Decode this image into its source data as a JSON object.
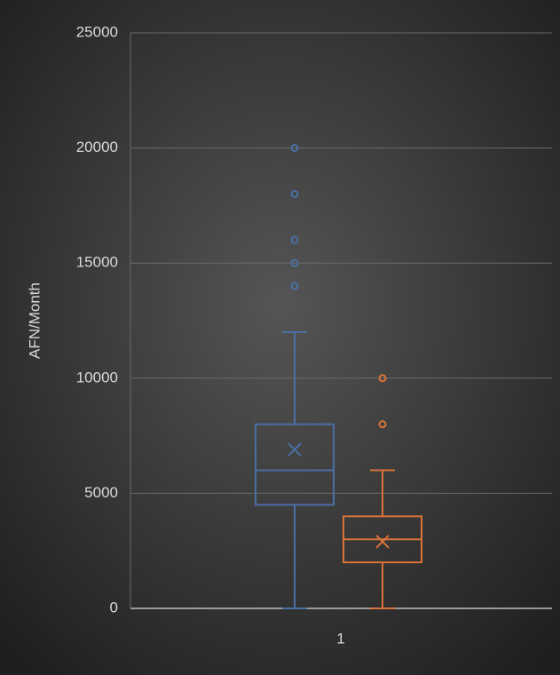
{
  "chart_data": {
    "type": "box",
    "y_label": "AFN/Month",
    "categories": [
      "1"
    ],
    "ylim": [
      0,
      25000
    ],
    "yticks": [
      0,
      5000,
      10000,
      15000,
      20000,
      25000
    ],
    "grid": true,
    "series": [
      {
        "color": "#4a6fa5",
        "min": 0,
        "q1": 4500,
        "median": 6000,
        "q3": 8000,
        "max": 12000,
        "mean": 6900,
        "outliers": [
          14000,
          15000,
          16000,
          18000,
          20000
        ]
      },
      {
        "color": "#d9733a",
        "min": 0,
        "q1": 2000,
        "median": 3000,
        "q3": 4000,
        "max": 6000,
        "mean": 2900,
        "outliers": [
          8000,
          10000
        ]
      }
    ]
  }
}
